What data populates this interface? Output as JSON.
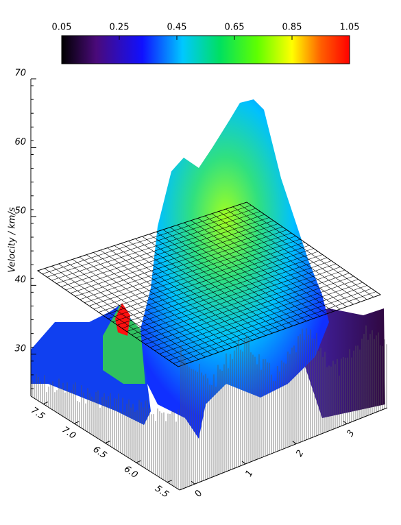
{
  "chart_data": {
    "type": "surface",
    "zlabel": "Velocity / km/s",
    "colorbar": {
      "lim": [
        0.05,
        1.05
      ],
      "ticks": [
        0.05,
        0.25,
        0.45,
        0.65,
        0.85,
        1.05
      ]
    },
    "zlim": [
      25,
      70
    ],
    "zticks": [
      30,
      40,
      50,
      60,
      70
    ],
    "xlim": [
      7.7,
      5.3
    ],
    "xticks": [
      7.5,
      {
        "value": 7,
        "label": "7.0"
      },
      6.5,
      {
        "value": 6,
        "label": "6.0"
      },
      5.5
    ],
    "ylim": [
      -0.3,
      3.8
    ],
    "yticks": [
      0,
      1,
      2,
      3
    ]
  }
}
